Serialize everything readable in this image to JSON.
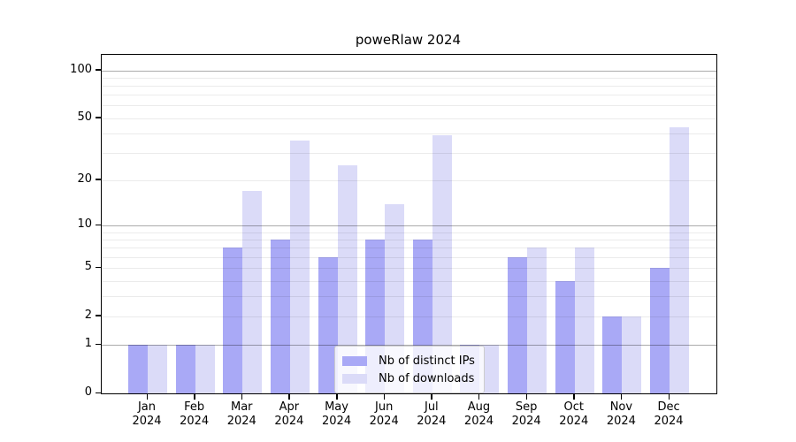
{
  "title": "poweRlaw 2024",
  "chart_data": {
    "type": "bar",
    "title": "poweRlaw 2024",
    "xlabel": "",
    "ylabel": "",
    "y_scale": "log1p",
    "categories": [
      "Jan",
      "Feb",
      "Mar",
      "Apr",
      "May",
      "Jun",
      "Jul",
      "Aug",
      "Sep",
      "Oct",
      "Nov",
      "Dec"
    ],
    "year_label": "2024",
    "series": [
      {
        "name": "Nb of distinct IPs",
        "color": "#a9a9f6",
        "values": [
          1,
          1,
          7,
          8,
          6,
          8,
          8,
          1,
          6,
          4,
          2,
          5
        ]
      },
      {
        "name": "Nb of downloads",
        "color": "#dbdbf8",
        "values": [
          1,
          1,
          17,
          36,
          25,
          14,
          39,
          1,
          7,
          7,
          2,
          44
        ]
      }
    ],
    "y_ticks": [
      0,
      1,
      2,
      5,
      10,
      20,
      50,
      100
    ],
    "y_major_gridlines": [
      1,
      10,
      100
    ],
    "y_minor_gridlines": [
      2,
      3,
      4,
      5,
      6,
      7,
      8,
      9,
      20,
      30,
      40,
      50,
      60,
      70,
      80,
      90
    ],
    "y_top_value": 125,
    "ylim": [
      0,
      125
    ],
    "grid": "on",
    "legend_position": "bottom-center"
  },
  "legend": {
    "items": [
      {
        "label": "Nb of distinct IPs",
        "color": "#a9a9f6"
      },
      {
        "label": "Nb of downloads",
        "color": "#dbdbf8"
      }
    ]
  }
}
